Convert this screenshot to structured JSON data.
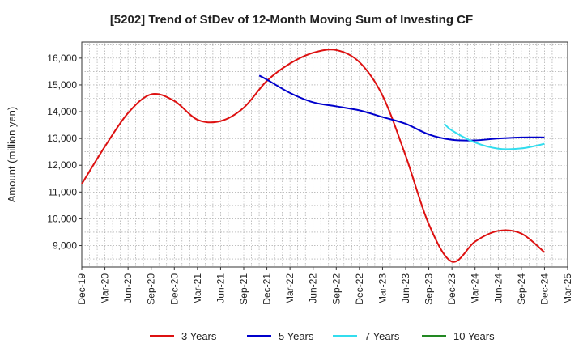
{
  "chart_data": {
    "type": "line",
    "title": "[5202]  Trend of StDev of 12-Month Moving Sum of Investing CF",
    "xlabel": "",
    "ylabel": "Amount (million yen)",
    "categories": [
      "Dec-19",
      "Mar-20",
      "Jun-20",
      "Sep-20",
      "Dec-20",
      "Mar-21",
      "Jun-21",
      "Sep-21",
      "Dec-21",
      "Mar-22",
      "Jun-22",
      "Sep-22",
      "Dec-22",
      "Mar-23",
      "Jun-23",
      "Sep-23",
      "Dec-23",
      "Mar-24",
      "Jun-24",
      "Sep-24",
      "Dec-24",
      "Mar-25"
    ],
    "yticks": [
      9000,
      10000,
      11000,
      12000,
      13000,
      14000,
      15000,
      16000
    ],
    "ytick_labels": [
      "9,000",
      "10,000",
      "11,000",
      "12,000",
      "13,000",
      "14,000",
      "15,000",
      "16,000"
    ],
    "ylim": [
      8200,
      16600
    ],
    "grid": true,
    "legend_position": "bottom",
    "series": [
      {
        "name": "3 Years",
        "color": "#dd1111",
        "points": [
          [
            0,
            11300
          ],
          [
            1,
            12700
          ],
          [
            2,
            13950
          ],
          [
            3,
            14650
          ],
          [
            4,
            14400
          ],
          [
            5,
            13700
          ],
          [
            6,
            13650
          ],
          [
            7,
            14150
          ],
          [
            8,
            15150
          ],
          [
            9,
            15800
          ],
          [
            10,
            16200
          ],
          [
            11,
            16300
          ],
          [
            12,
            15850
          ],
          [
            13,
            14600
          ],
          [
            14,
            12350
          ],
          [
            15,
            9800
          ],
          [
            16,
            8400
          ],
          [
            17,
            9150
          ],
          [
            18,
            9550
          ],
          [
            19,
            9450
          ],
          [
            20,
            8750
          ]
        ]
      },
      {
        "name": "5 Years",
        "color": "#0000cc",
        "points": [
          [
            7.67,
            15350
          ],
          [
            8,
            15200
          ],
          [
            9,
            14700
          ],
          [
            10,
            14350
          ],
          [
            11,
            14200
          ],
          [
            12,
            14050
          ],
          [
            13,
            13800
          ],
          [
            14,
            13550
          ],
          [
            15,
            13150
          ],
          [
            16,
            12950
          ],
          [
            17,
            12930
          ],
          [
            18,
            13000
          ],
          [
            19,
            13040
          ],
          [
            20,
            13040
          ]
        ]
      },
      {
        "name": "7 Years",
        "color": "#33ddee",
        "points": [
          [
            15.67,
            13550
          ],
          [
            16,
            13300
          ],
          [
            17,
            12850
          ],
          [
            18,
            12620
          ],
          [
            19,
            12630
          ],
          [
            20,
            12800
          ]
        ]
      },
      {
        "name": "10 Years",
        "color": "#228822",
        "points": []
      }
    ]
  }
}
